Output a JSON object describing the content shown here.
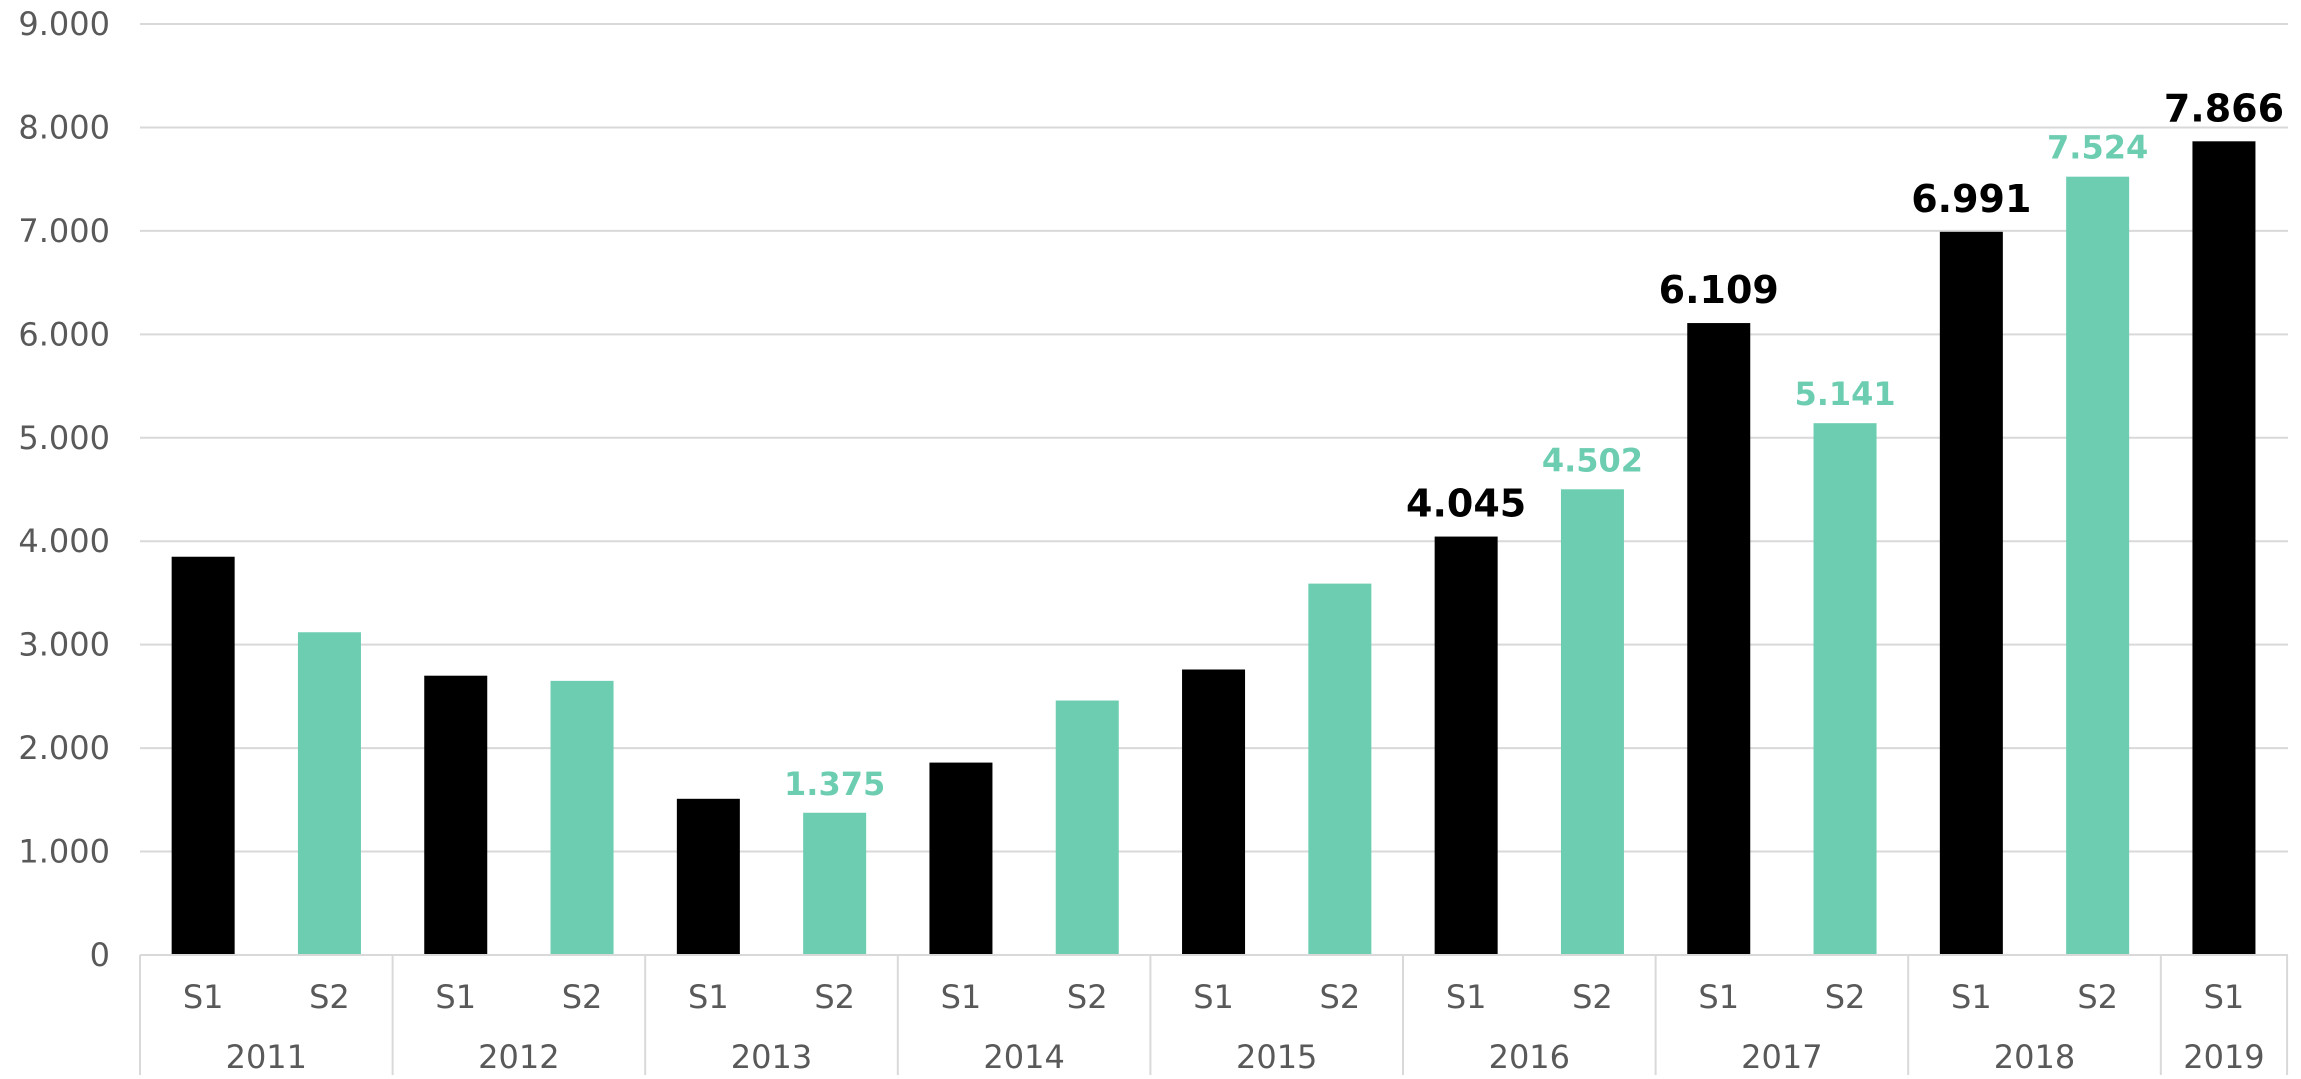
{
  "chart_data": {
    "type": "bar",
    "title": "",
    "xlabel": "",
    "ylabel": "",
    "ylim": [
      0,
      9000
    ],
    "yticks": [
      "0",
      "1.000",
      "2.000",
      "3.000",
      "4.000",
      "5.000",
      "6.000",
      "7.000",
      "8.000",
      "9.000"
    ],
    "ytick_values": [
      0,
      1000,
      2000,
      3000,
      4000,
      5000,
      6000,
      7000,
      8000,
      9000
    ],
    "grid": true,
    "legend": "none",
    "colors": {
      "S1": "#000000",
      "S2": "#6ccdb0",
      "grid": "#d9d9d9",
      "axis_text": "#595959",
      "separator": "#d9d9d9"
    },
    "groups": [
      {
        "year": "2011",
        "bars": [
          {
            "half": "S1",
            "value": 3850,
            "label": ""
          },
          {
            "half": "S2",
            "value": 3120,
            "label": ""
          }
        ]
      },
      {
        "year": "2012",
        "bars": [
          {
            "half": "S1",
            "value": 2700,
            "label": ""
          },
          {
            "half": "S2",
            "value": 2650,
            "label": ""
          }
        ]
      },
      {
        "year": "2013",
        "bars": [
          {
            "half": "S1",
            "value": 1510,
            "label": ""
          },
          {
            "half": "S2",
            "value": 1375,
            "label": "1.375"
          }
        ]
      },
      {
        "year": "2014",
        "bars": [
          {
            "half": "S1",
            "value": 1860,
            "label": ""
          },
          {
            "half": "S2",
            "value": 2460,
            "label": ""
          }
        ]
      },
      {
        "year": "2015",
        "bars": [
          {
            "half": "S1",
            "value": 2760,
            "label": ""
          },
          {
            "half": "S2",
            "value": 3590,
            "label": ""
          }
        ]
      },
      {
        "year": "2016",
        "bars": [
          {
            "half": "S1",
            "value": 4045,
            "label": "4.045"
          },
          {
            "half": "S2",
            "value": 4502,
            "label": "4.502"
          }
        ]
      },
      {
        "year": "2017",
        "bars": [
          {
            "half": "S1",
            "value": 6109,
            "label": "6.109"
          },
          {
            "half": "S2",
            "value": 5141,
            "label": "5.141"
          }
        ]
      },
      {
        "year": "2018",
        "bars": [
          {
            "half": "S1",
            "value": 6991,
            "label": "6.991"
          },
          {
            "half": "S2",
            "value": 7524,
            "label": "7.524"
          }
        ]
      },
      {
        "year": "2019",
        "bars": [
          {
            "half": "S1",
            "value": 7866,
            "label": "7.866"
          }
        ]
      }
    ]
  }
}
